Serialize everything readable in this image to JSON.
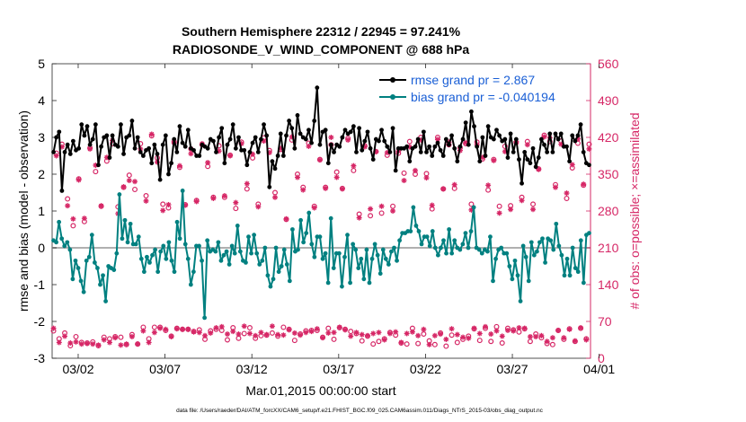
{
  "chart_data": {
    "type": "line",
    "title": "Southern Hemisphere 22312 / 22945 = 97.241%",
    "subtitle": "RADIOSONDE_V_WIND_COMPONENT @ 688 hPa",
    "xlabel": "Mar.01,2015 00:00:00 start",
    "ylabel_left": "rmse and bias (model - observation)",
    "ylabel_right": "# of obs: o=possible; ×=assimilated",
    "footer": "data file: /Users/raeder/DAI/ATM_forcXX/CAM6_setup/f.e21.FHIST_BGC.f09_025.CAM6assim.011/Diags_NTrS_2015-03/obs_diag_output.nc",
    "xlim": [
      0.5,
      31.5
    ],
    "ylim_left": [
      -3,
      5
    ],
    "ylim_right": [
      0,
      560
    ],
    "x_ticks": [
      2,
      7,
      12,
      17,
      22,
      27,
      32
    ],
    "x_tick_labels": [
      "03/02",
      "03/07",
      "03/12",
      "03/17",
      "03/22",
      "03/27",
      "04/01"
    ],
    "y_ticks_left": [
      -3,
      -2,
      -1,
      0,
      1,
      2,
      3,
      4,
      5
    ],
    "y_tick_labels_left": [
      "-3",
      "-2",
      "-1",
      "0",
      "1",
      "2",
      "3",
      "4",
      "5"
    ],
    "y_ticks_right": [
      0,
      70,
      140,
      210,
      280,
      350,
      420,
      490,
      560
    ],
    "y_tick_labels_right": [
      "0",
      "70",
      "140",
      "210",
      "280",
      "350",
      "420",
      "490",
      "560"
    ],
    "zero_line": 0,
    "legend": {
      "position": "top-right",
      "entries": [
        "rmse grand pr = 2.867",
        "bias grand pr = -0.040194"
      ]
    },
    "colors": {
      "rmse": "#000000",
      "bias": "#008080",
      "obs": "#d62766",
      "zero_line": "#b0b0b0",
      "legend_text": "#1a5fd6",
      "right_axis": "#d62766"
    },
    "series": [
      {
        "name": "rmse",
        "values": [
          2.6,
          3.0,
          3.15,
          1.55,
          2.6,
          2.8,
          2.55,
          2.9,
          2.65,
          2.7,
          3.35,
          3.05,
          3.3,
          2.8,
          2.95,
          3.35,
          2.25,
          2.75,
          3.0,
          3.05,
          2.45,
          3.05,
          2.8,
          2.75,
          3.35,
          2.55,
          3.0,
          3.05,
          3.45,
          2.7,
          3.0,
          2.6,
          2.5,
          2.65,
          2.7,
          2.3,
          2.8,
          2.55,
          1.85,
          2.8,
          3.05,
          2.0,
          2.3,
          2.95,
          2.6,
          3.3,
          2.85,
          2.75,
          3.2,
          2.7,
          2.65,
          2.5,
          2.5,
          2.8,
          2.75,
          2.7,
          2.95,
          2.9,
          2.6,
          3.0,
          3.25,
          2.3,
          2.8,
          2.95,
          3.35,
          2.7,
          3.0,
          2.65,
          2.65,
          2.25,
          2.6,
          2.85,
          3.0,
          2.6,
          2.95,
          3.35,
          3.05,
          1.65,
          2.35,
          2.15,
          2.5,
          3.1,
          2.5,
          3.05,
          3.45,
          3.25,
          2.7,
          3.6,
          3.1,
          3.0,
          2.95,
          3.2,
          2.85,
          3.45,
          4.35,
          2.8,
          3.15,
          3.2,
          2.3,
          2.8,
          2.6,
          2.8,
          2.75,
          3.0,
          3.2,
          3.1,
          3.15,
          3.3,
          2.6,
          3.25,
          2.65,
          2.9,
          3.15,
          2.7,
          2.4,
          2.95,
          2.9,
          3.2,
          2.9,
          2.75,
          2.6,
          3.25,
          2.1,
          2.7,
          2.7,
          2.7,
          2.75,
          2.35,
          2.7,
          2.75,
          2.95,
          2.6,
          3.15,
          2.6,
          2.75,
          2.5,
          2.75,
          2.85,
          2.65,
          2.5,
          2.95,
          2.8,
          3.05,
          2.7,
          2.35,
          2.75,
          2.95,
          3.4,
          2.8,
          3.7,
          3.3,
          2.75,
          2.35,
          3.0,
          2.5,
          3.3,
          3.0,
          2.95,
          3.2,
          3.05,
          2.9,
          2.95,
          2.45,
          3.1,
          2.6,
          2.95,
          2.4,
          1.75,
          2.6,
          2.4,
          2.3,
          2.7,
          2.2,
          2.45,
          2.95,
          2.8,
          2.6,
          3.1,
          2.6,
          3.1,
          2.95,
          3.1,
          2.75,
          2.75,
          2.35,
          3.05,
          2.9,
          3.05,
          3.35,
          2.6,
          2.3,
          2.25
        ]
      },
      {
        "name": "bias",
        "values": [
          0.2,
          0.15,
          0.7,
          0.25,
          0.05,
          0.15,
          -0.05,
          -0.85,
          -0.35,
          -0.55,
          -0.9,
          -1.2,
          -0.35,
          -0.25,
          0.35,
          -0.4,
          -0.55,
          -1.0,
          -0.75,
          -1.45,
          -0.5,
          -0.55,
          -0.6,
          -0.15,
          1.45,
          0.25,
          0.75,
          0.15,
          0.65,
          0.1,
          0.1,
          0.3,
          -0.3,
          -0.65,
          -0.25,
          -0.4,
          -0.2,
          -0.05,
          -0.65,
          -0.1,
          0.05,
          -0.3,
          0.15,
          -0.35,
          -0.65,
          0.7,
          0.25,
          1.55,
          0.1,
          -0.3,
          -1.0,
          -0.65,
          0.05,
          0.05,
          -0.35,
          -1.9,
          0.2,
          -0.1,
          -0.05,
          -0.1,
          0.15,
          -0.35,
          -0.2,
          -0.1,
          -0.45,
          0.05,
          -0.15,
          0.6,
          -0.1,
          -0.35,
          -0.4,
          0.3,
          -0.15,
          0.35,
          -0.15,
          -0.45,
          -0.35,
          0.0,
          -0.75,
          -1.05,
          -0.85,
          0.0,
          -0.65,
          -0.5,
          -0.05,
          -0.45,
          -0.9,
          0.5,
          -0.1,
          -0.05,
          0.75,
          0.15,
          0.4,
          0.95,
          0.1,
          -0.25,
          0.3,
          0.3,
          -0.3,
          -0.15,
          -0.95,
          0.8,
          -0.55,
          -0.15,
          -0.15,
          -1.05,
          -0.25,
          0.35,
          -0.95,
          0.1,
          -0.05,
          -0.55,
          -0.3,
          -0.85,
          -0.05,
          -0.95,
          -0.3,
          0.1,
          -0.2,
          -0.7,
          -0.05,
          -0.3,
          -0.45,
          -0.1,
          0.0,
          -0.35,
          0.2,
          0.4,
          0.4,
          0.45,
          0.45,
          1.1,
          0.6,
          0.45,
          0.1,
          0.3,
          0.3,
          0.05,
          0.45,
          0.0,
          -0.2,
          0.0,
          0.2,
          -0.15,
          0.5,
          -0.15,
          0.2,
          0.0,
          -0.05,
          0.1,
          0.4,
          0.0,
          0.45,
          1.1,
          0.0,
          -0.05,
          -0.15,
          -0.05,
          -0.1,
          0.3,
          -0.9,
          -0.3,
          -0.05,
          0.0,
          -0.15,
          -0.15,
          -0.5,
          -0.85,
          -0.35,
          -0.75,
          -1.45,
          0.05,
          -0.25,
          -0.9,
          0.15,
          -0.2,
          -0.1,
          0.15,
          0.25,
          -0.4,
          0.25,
          0.2,
          -0.05,
          0.65,
          0.05,
          -0.2,
          -0.75,
          -0.3,
          -0.75,
          0.0,
          -0.55,
          -0.65,
          0.2,
          -0.95,
          0.35,
          0.4
        ]
      },
      {
        "name": "obs_possible",
        "values": [
          52,
          390,
          37,
          407,
          48,
          303,
          24,
          252,
          41,
          341,
          30,
          260,
          29,
          400,
          31,
          355,
          24,
          289,
          40,
          375,
          37,
          408,
          41,
          288,
          40,
          325,
          26,
          348,
          45,
          321,
          27,
          408,
          59,
          309,
          37,
          423,
          59,
          381,
          59,
          293,
          53,
          286,
          42,
          410,
          57,
          363,
          55,
          292,
          55,
          398,
          51,
          300,
          54,
          406,
          36,
          365,
          52,
          306,
          55,
          404,
          53,
          306,
          35,
          386,
          58,
          285,
          38,
          411,
          47,
          322,
          58,
          381,
          38,
          293,
          43,
          419,
          44,
          395,
          48,
          315,
          42,
          397,
          59,
          264,
          55,
          415,
          34,
          350,
          46,
          325,
          52,
          409,
          53,
          289,
          53,
          378,
          40,
          325,
          57,
          406,
          36,
          354,
          58,
          323,
          55,
          418,
          51,
          357,
          47,
          274,
          33,
          404,
          42,
          271,
          27,
          393,
          32,
          276,
          37,
          386,
          49,
          289,
          44,
          390,
          29,
          352,
          27,
          412,
          57,
          350,
          28,
          420,
          46,
          351,
          33,
          284,
          26,
          420,
          48,
          322,
          23,
          406,
          44,
          323,
          30,
          400,
          36,
          408,
          42,
          293,
          56,
          411,
          34,
          379,
          57,
          320,
          32,
          378,
          60,
          289,
          29,
          403,
          57,
          290,
          54,
          410,
          50,
          306,
          56,
          412,
          32,
          293,
          46,
          360,
          39,
          424,
          28,
          412,
          26,
          330,
          53,
          413,
          36,
          304,
          56,
          362,
          32,
          409,
          57,
          329,
          37,
          407
        ]
      },
      {
        "name": "obs_assimilated",
        "values": [
          57,
          385,
          30,
          402,
          42,
          290,
          29,
          265,
          31,
          339,
          27,
          266,
          28,
          398,
          27,
          367,
          25,
          290,
          35,
          382,
          30,
          414,
          39,
          275,
          25,
          326,
          27,
          338,
          41,
          336,
          27,
          398,
          52,
          299,
          30,
          426,
          49,
          373,
          57,
          281,
          55,
          292,
          41,
          413,
          56,
          366,
          55,
          291,
          55,
          389,
          50,
          298,
          49,
          408,
          43,
          372,
          48,
          304,
          58,
          394,
          60,
          309,
          46,
          385,
          51,
          296,
          46,
          408,
          61,
          332,
          47,
          388,
          43,
          288,
          49,
          413,
          45,
          391,
          61,
          306,
          45,
          399,
          44,
          265,
          54,
          421,
          48,
          344,
          44,
          320,
          49,
          403,
          51,
          286,
          56,
          377,
          39,
          323,
          48,
          420,
          49,
          344,
          59,
          322,
          54,
          415,
          42,
          366,
          49,
          267,
          45,
          402,
          43,
          284,
          47,
          393,
          49,
          289,
          35,
          391,
          47,
          280,
          50,
          394,
          30,
          338,
          47,
          402,
          50,
          357,
          43,
          415,
          55,
          343,
          26,
          291,
          43,
          416,
          46,
          322,
          36,
          411,
          56,
          330,
          45,
          395,
          40,
          410,
          38,
          282,
          57,
          406,
          47,
          382,
          60,
          329,
          46,
          376,
          52,
          276,
          42,
          393,
          53,
          283,
          52,
          412,
          58,
          300,
          57,
          406,
          41,
          283,
          41,
          359,
          43,
          421,
          32,
          419,
          39,
          325,
          53,
          407,
          39,
          314,
          55,
          368,
          33,
          417,
          58,
          331,
          35,
          398
        ]
      }
    ]
  }
}
